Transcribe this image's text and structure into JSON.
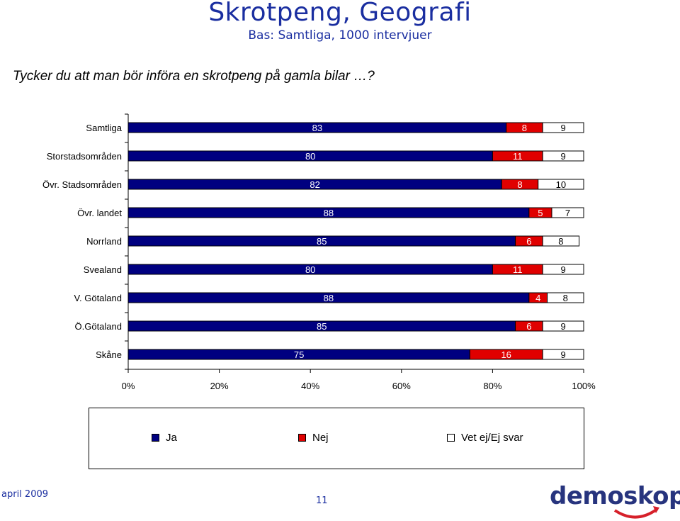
{
  "header": {
    "title": "Skrotpeng, Geografi",
    "subtitle": "Bas: Samtliga, 1000 intervjuer",
    "question": "Tycker du att man bör införa en skrotpeng på gamla bilar …?"
  },
  "colors": {
    "ja": "#000080",
    "nej": "#e00000",
    "vet": "#ffffff"
  },
  "chart_data": {
    "type": "bar",
    "orientation": "horizontal",
    "stacked": true,
    "categories": [
      "Samtliga",
      "Storstadsområden",
      "Övr. Stadsområden",
      "Övr. landet",
      "Norrland",
      "Svealand",
      "V. Götaland",
      "Ö.Götaland",
      "Skåne"
    ],
    "series": [
      {
        "name": "Ja",
        "values": [
          83,
          80,
          82,
          88,
          85,
          80,
          88,
          85,
          75
        ]
      },
      {
        "name": "Nej",
        "values": [
          8,
          11,
          8,
          5,
          6,
          11,
          4,
          6,
          16
        ]
      },
      {
        "name": "Vet ej/Ej svar",
        "values": [
          9,
          9,
          10,
          7,
          8,
          9,
          8,
          9,
          9
        ]
      }
    ],
    "xlim": [
      0,
      100
    ],
    "x_ticks": [
      "0%",
      "20%",
      "40%",
      "60%",
      "80%",
      "100%"
    ],
    "legend_position": "bottom",
    "grid": false
  },
  "legend": {
    "ja": "Ja",
    "nej": "Nej",
    "vet": "Vet ej/Ej svar"
  },
  "footer": {
    "date": "april 2009",
    "page": "11",
    "logo": "demoskop"
  }
}
